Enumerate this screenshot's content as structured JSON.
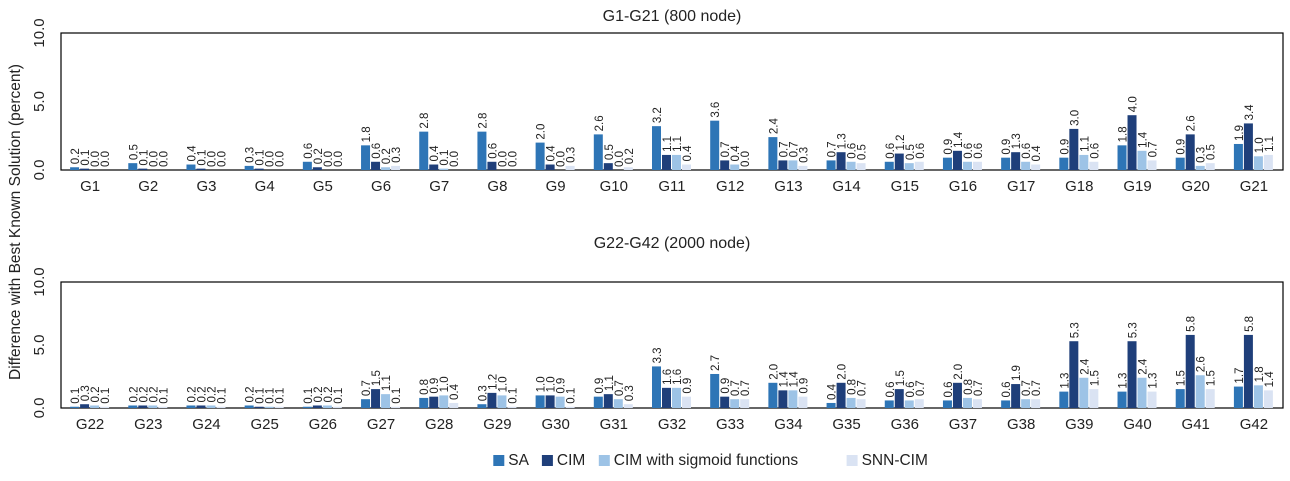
{
  "ylabel": "Difference with Best Known Solution (percent)",
  "legend": [
    {
      "name": "SA",
      "color": "#2e75b6"
    },
    {
      "name": "CIM",
      "color": "#1f3f7a"
    },
    {
      "name": "CIM with sigmoid functions",
      "color": "#9dc3e6"
    },
    {
      "name": "SNN-CIM",
      "color": "#dae3f3"
    }
  ],
  "chart_data": [
    {
      "type": "bar",
      "title": "G1-G21 (800 node)",
      "ylim": [
        0,
        10
      ],
      "yticks": [
        "0.0",
        "5.0",
        "10.0"
      ],
      "categories": [
        "G1",
        "G2",
        "G3",
        "G4",
        "G5",
        "G6",
        "G7",
        "G8",
        "G9",
        "G10",
        "G11",
        "G12",
        "G13",
        "G14",
        "G15",
        "G16",
        "G17",
        "G18",
        "G19",
        "G20",
        "G21"
      ],
      "series": [
        {
          "name": "SA",
          "values": [
            0.2,
            0.5,
            0.4,
            0.3,
            0.6,
            1.8,
            2.8,
            2.8,
            2.0,
            2.6,
            3.2,
            3.6,
            2.4,
            0.7,
            0.6,
            0.9,
            0.9,
            0.9,
            1.8,
            0.9,
            1.9
          ]
        },
        {
          "name": "CIM",
          "values": [
            0.1,
            0.1,
            0.1,
            0.1,
            0.2,
            0.6,
            0.4,
            0.6,
            0.4,
            0.5,
            1.1,
            0.7,
            0.7,
            1.3,
            1.2,
            1.4,
            1.3,
            3.0,
            4.0,
            2.6,
            3.4
          ]
        },
        {
          "name": "CIM with sigmoid functions",
          "values": [
            0.0,
            0.0,
            0.0,
            0.0,
            0.0,
            0.2,
            0.1,
            0.0,
            0.0,
            0.0,
            1.1,
            0.4,
            0.7,
            0.6,
            0.5,
            0.6,
            0.6,
            1.1,
            1.4,
            0.3,
            1.0
          ]
        },
        {
          "name": "SNN-CIM",
          "values": [
            0.0,
            0.0,
            0.0,
            0.0,
            0.0,
            0.3,
            0.0,
            0.0,
            0.3,
            0.2,
            0.4,
            0.0,
            0.3,
            0.5,
            0.6,
            0.6,
            0.4,
            0.6,
            0.7,
            0.5,
            1.1
          ]
        }
      ]
    },
    {
      "type": "bar",
      "title": "G22-G42 (2000 node)",
      "ylim": [
        0,
        10
      ],
      "yticks": [
        "0.0",
        "5.0",
        "10.0"
      ],
      "categories": [
        "G22",
        "G23",
        "G24",
        "G25",
        "G26",
        "G27",
        "G28",
        "G29",
        "G30",
        "G31",
        "G32",
        "G33",
        "G34",
        "G35",
        "G36",
        "G37",
        "G38",
        "G39",
        "G40",
        "G41",
        "G42"
      ],
      "series": [
        {
          "name": "SA",
          "values": [
            0.1,
            0.2,
            0.2,
            0.2,
            0.1,
            0.7,
            0.8,
            0.3,
            1.0,
            0.9,
            3.3,
            2.7,
            2.0,
            0.4,
            0.6,
            0.6,
            0.6,
            1.3,
            1.3,
            1.5,
            1.7
          ]
        },
        {
          "name": "CIM",
          "values": [
            0.3,
            0.2,
            0.2,
            0.1,
            0.2,
            1.5,
            0.9,
            1.2,
            1.0,
            1.1,
            1.6,
            0.9,
            1.4,
            2.0,
            1.5,
            2.0,
            1.9,
            5.3,
            5.3,
            5.8,
            5.8
          ]
        },
        {
          "name": "CIM with sigmoid functions",
          "values": [
            0.2,
            0.2,
            0.2,
            0.1,
            0.2,
            1.1,
            1.0,
            1.0,
            0.9,
            0.7,
            1.6,
            0.7,
            1.4,
            0.8,
            0.6,
            0.8,
            0.7,
            2.4,
            2.4,
            2.6,
            1.8
          ]
        },
        {
          "name": "SNN-CIM",
          "values": [
            0.1,
            0.1,
            0.1,
            0.1,
            0.1,
            0.1,
            0.4,
            0.1,
            0.1,
            0.3,
            0.9,
            0.7,
            0.9,
            0.7,
            0.7,
            0.7,
            0.7,
            1.5,
            1.3,
            1.5,
            1.4
          ]
        }
      ]
    }
  ]
}
